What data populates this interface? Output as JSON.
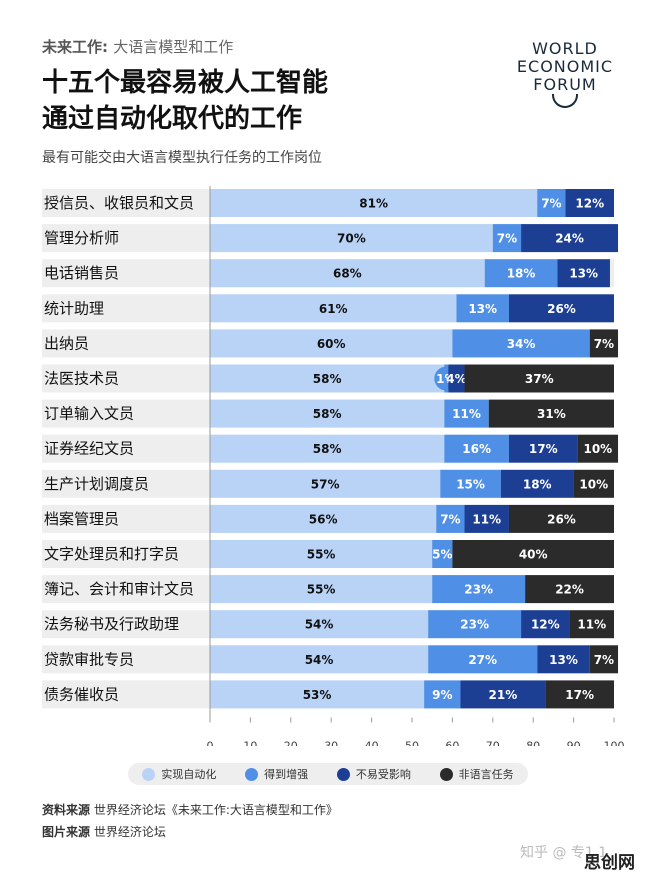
{
  "header": {
    "series_title": "未来工作:",
    "series_subtitle": "大语言模型和工作",
    "title_line1": "十五个最容易被人工智能",
    "title_line2": "通过自动化取代的工作",
    "subtitle": "最有可能交由大语言模型执行任务的工作岗位"
  },
  "logo": {
    "line1": "WORLD",
    "line2": "ECONOMIC",
    "line3": "FORUM"
  },
  "colors": {
    "automation": "#b9d3f7",
    "augmentation": "#4f90e6",
    "lower_exposure": "#1c3f94",
    "non_language": "#2b2b2b",
    "row_bg": "#eeeeee"
  },
  "chart_data": {
    "type": "bar",
    "orientation": "horizontal-stacked",
    "categories": [
      "授信员、收银员和文员",
      "管理分析师",
      "电话销售员",
      "统计助理",
      "出纳员",
      "法医技术员",
      "订单输入文员",
      "证券经纪文员",
      "生产计划调度员",
      "档案管理员",
      "文字处理员和打字员",
      "簿记、会计和审计文员",
      "法务秘书及行政助理",
      "贷款审批专员",
      "债务催收员"
    ],
    "series": [
      {
        "name": "实现自动化",
        "values": [
          81,
          70,
          68,
          61,
          60,
          58,
          58,
          58,
          57,
          56,
          55,
          55,
          54,
          54,
          53
        ]
      },
      {
        "name": "得到增强",
        "values": [
          7,
          7,
          18,
          13,
          34,
          1,
          11,
          16,
          15,
          7,
          5,
          23,
          23,
          27,
          9
        ]
      },
      {
        "name": "不易受影响",
        "values": [
          12,
          24,
          13,
          26,
          0,
          4,
          0,
          17,
          18,
          11,
          0,
          0,
          12,
          13,
          21
        ]
      },
      {
        "name": "非语言任务",
        "values": [
          0,
          0,
          0,
          0,
          7,
          37,
          31,
          10,
          10,
          26,
          40,
          22,
          11,
          7,
          17
        ]
      }
    ],
    "xlim": [
      0,
      100
    ],
    "xticks": [
      "0",
      "10",
      "20",
      "30",
      "40",
      "50",
      "60",
      "70",
      "80",
      "90",
      "100"
    ],
    "legend_position": "bottom"
  },
  "source": {
    "label1": "资料来源",
    "text1": "世界经济论坛《未来工作:大语言模型和工作》",
    "label2": "图片来源",
    "text2": "世界经济论坛"
  },
  "watermark": {
    "text": "知乎 @ 专1 1",
    "brand": "思创网"
  }
}
